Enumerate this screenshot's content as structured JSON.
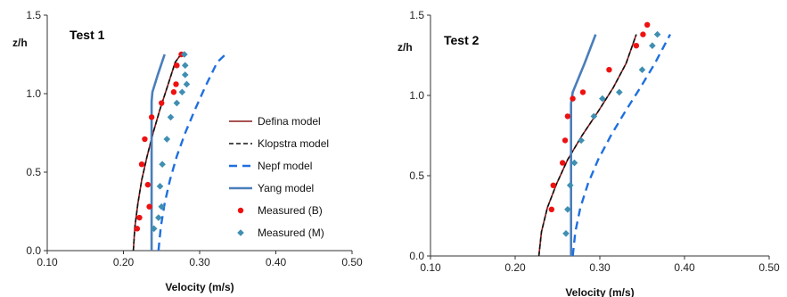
{
  "chart_data": [
    {
      "type": "line",
      "title": "Test 1",
      "xlabel": "Velocity (m/s)",
      "ylabel": "z/h",
      "xlim": [
        0.1,
        0.5
      ],
      "ylim": [
        0.0,
        1.5
      ],
      "xticks": [
        "0.10",
        "0.20",
        "0.30",
        "0.40",
        "0.50"
      ],
      "yticks": [
        "0.0",
        "0.5",
        "1.0",
        "1.5"
      ],
      "grid": false,
      "legend": "right",
      "series": [
        {
          "name": "Defina model",
          "kind": "line",
          "color": "#8b1a1a",
          "dash": "",
          "x": [
            0.213,
            0.215,
            0.219,
            0.224,
            0.231,
            0.239,
            0.248,
            0.258,
            0.268,
            0.277
          ],
          "y": [
            0.0,
            0.15,
            0.3,
            0.45,
            0.6,
            0.75,
            0.9,
            1.05,
            1.2,
            1.26
          ]
        },
        {
          "name": "Klopstra model",
          "kind": "line",
          "color": "#111111",
          "dash": "5,3",
          "x": [
            0.213,
            0.215,
            0.219,
            0.224,
            0.231,
            0.239,
            0.248,
            0.258,
            0.268,
            0.277
          ],
          "y": [
            0.0,
            0.15,
            0.3,
            0.45,
            0.6,
            0.75,
            0.9,
            1.05,
            1.2,
            1.26
          ]
        },
        {
          "name": "Nepf model",
          "kind": "line",
          "color": "#1f6fe0",
          "dash": "9,6",
          "x": [
            0.246,
            0.249,
            0.254,
            0.261,
            0.27,
            0.281,
            0.294,
            0.308,
            0.323,
            0.336
          ],
          "y": [
            0.0,
            0.15,
            0.3,
            0.45,
            0.6,
            0.75,
            0.9,
            1.05,
            1.2,
            1.26
          ]
        },
        {
          "name": "Yang model",
          "kind": "line",
          "color": "#4a7ebb",
          "dash": "",
          "x": [
            0.237,
            0.237,
            0.237,
            0.237,
            0.237,
            0.237,
            0.238,
            0.245,
            0.254
          ],
          "y": [
            0.0,
            0.2,
            0.4,
            0.6,
            0.8,
            0.95,
            1.01,
            1.12,
            1.25
          ]
        },
        {
          "name": "Measured (B)",
          "kind": "marker",
          "marker": "circle",
          "color": "#ee1111",
          "x": [
            0.218,
            0.221,
            0.234,
            0.232,
            0.224,
            0.228,
            0.237,
            0.25,
            0.266,
            0.269,
            0.27,
            0.276
          ],
          "y": [
            0.14,
            0.21,
            0.28,
            0.42,
            0.55,
            0.71,
            0.85,
            0.94,
            1.01,
            1.06,
            1.18,
            1.25
          ]
        },
        {
          "name": "Measured (M)",
          "kind": "marker",
          "marker": "diamond",
          "color": "#3f8fb2",
          "x": [
            0.24,
            0.246,
            0.25,
            0.248,
            0.251,
            0.257,
            0.262,
            0.27,
            0.277,
            0.283,
            0.281,
            0.281,
            0.28
          ],
          "y": [
            0.14,
            0.21,
            0.28,
            0.41,
            0.55,
            0.71,
            0.85,
            0.94,
            1.01,
            1.06,
            1.12,
            1.18,
            1.25
          ]
        }
      ]
    },
    {
      "type": "line",
      "title": "Test 2",
      "xlabel": "Velocity (m/s)",
      "ylabel": "z/h",
      "xlim": [
        0.1,
        0.5
      ],
      "ylim": [
        0.0,
        1.5
      ],
      "xticks": [
        "0.10",
        "0.20",
        "0.30",
        "0.40",
        "0.50"
      ],
      "yticks": [
        "0.0",
        "0.5",
        "1.0",
        "1.5"
      ],
      "grid": false,
      "legend": "none",
      "series": [
        {
          "name": "Defina model",
          "kind": "line",
          "color": "#8b1a1a",
          "dash": "",
          "x": [
            0.228,
            0.231,
            0.238,
            0.249,
            0.262,
            0.279,
            0.298,
            0.316,
            0.331,
            0.343
          ],
          "y": [
            0.0,
            0.15,
            0.3,
            0.45,
            0.6,
            0.75,
            0.9,
            1.05,
            1.2,
            1.38
          ]
        },
        {
          "name": "Klopstra model",
          "kind": "line",
          "color": "#111111",
          "dash": "5,3",
          "x": [
            0.228,
            0.231,
            0.238,
            0.249,
            0.262,
            0.279,
            0.298,
            0.316,
            0.331,
            0.343
          ],
          "y": [
            0.0,
            0.15,
            0.3,
            0.45,
            0.6,
            0.75,
            0.9,
            1.05,
            1.2,
            1.38
          ]
        },
        {
          "name": "Nepf model",
          "kind": "line",
          "color": "#1f6fe0",
          "dash": "9,6",
          "x": [
            0.268,
            0.271,
            0.277,
            0.286,
            0.298,
            0.313,
            0.33,
            0.348,
            0.365,
            0.383
          ],
          "y": [
            0.0,
            0.15,
            0.3,
            0.45,
            0.6,
            0.75,
            0.9,
            1.05,
            1.2,
            1.38
          ]
        },
        {
          "name": "Yang model",
          "kind": "line",
          "color": "#4a7ebb",
          "dash": "",
          "x": [
            0.266,
            0.266,
            0.266,
            0.266,
            0.266,
            0.266,
            0.268,
            0.282,
            0.295
          ],
          "y": [
            0.0,
            0.2,
            0.4,
            0.6,
            0.8,
            0.95,
            1.02,
            1.2,
            1.38
          ]
        },
        {
          "name": "Measured (B)",
          "kind": "marker",
          "marker": "circle",
          "color": "#ee1111",
          "x": [
            0.243,
            0.245,
            0.256,
            0.259,
            0.262,
            0.268,
            0.28,
            0.311,
            0.343,
            0.351,
            0.356
          ],
          "y": [
            0.29,
            0.44,
            0.58,
            0.72,
            0.87,
            0.98,
            1.02,
            1.16,
            1.31,
            1.38,
            1.44
          ]
        },
        {
          "name": "Measured (M)",
          "kind": "marker",
          "marker": "diamond",
          "color": "#3f8fb2",
          "x": [
            0.26,
            0.262,
            0.265,
            0.27,
            0.278,
            0.293,
            0.303,
            0.323,
            0.35,
            0.362,
            0.368
          ],
          "y": [
            0.14,
            0.29,
            0.44,
            0.58,
            0.72,
            0.87,
            0.98,
            1.02,
            1.16,
            1.31,
            1.38
          ]
        }
      ]
    }
  ]
}
